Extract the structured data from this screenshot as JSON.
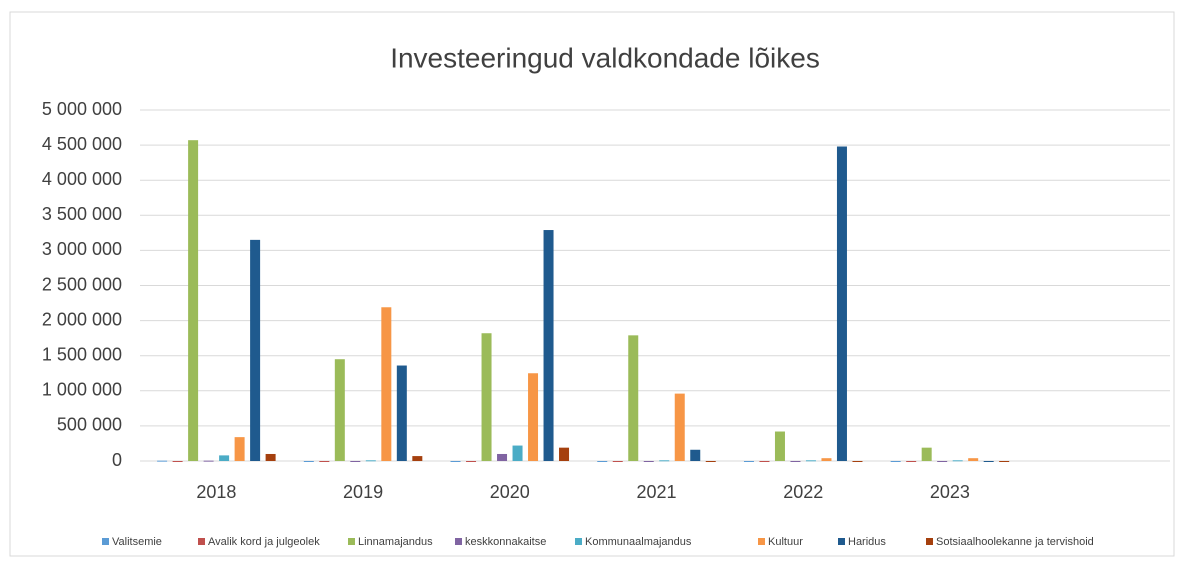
{
  "chart_data": {
    "type": "bar",
    "title": "Investeeringud valdkondade lõikes",
    "categories": [
      "2018",
      "2019",
      "2020",
      "2021",
      "2022",
      "2023",
      null
    ],
    "series": [
      {
        "name": "Valitsemie",
        "color": "#5b9bd5",
        "values": [
          5000,
          0,
          0,
          0,
          0,
          0,
          null
        ]
      },
      {
        "name": "Avalik kord ja julgeolek",
        "color": "#c0504d",
        "values": [
          0,
          0,
          0,
          0,
          0,
          0,
          null
        ]
      },
      {
        "name": "Linnamajandus",
        "color": "#9bbb59",
        "values": [
          4570000,
          1450000,
          1820000,
          1790000,
          420000,
          190000,
          null
        ]
      },
      {
        "name": "keskkonnakaitse",
        "color": "#8064a2",
        "values": [
          5000,
          0,
          100000,
          0,
          0,
          0,
          null
        ]
      },
      {
        "name": "Kommunaalmajandus",
        "color": "#4bacc6",
        "values": [
          80000,
          10000,
          220000,
          10000,
          10000,
          10000,
          null
        ]
      },
      {
        "name": "Kultuur",
        "color": "#f79646",
        "values": [
          340000,
          2190000,
          1250000,
          960000,
          40000,
          40000,
          null
        ]
      },
      {
        "name": "Haridus",
        "color": "#1f5a8e",
        "values": [
          3150000,
          1360000,
          3290000,
          160000,
          4480000,
          0,
          null
        ]
      },
      {
        "name": "Sotsiaalhoolekanne ja tervishoid",
        "color": "#a5400e",
        "values": [
          100000,
          70000,
          190000,
          0,
          0,
          0,
          null
        ]
      }
    ],
    "ylim": [
      0,
      5000000
    ],
    "yticks": [
      0,
      {
        "value": 500000,
        "label": "500 000"
      },
      {
        "value": 1000000,
        "label": "1 000 000"
      },
      {
        "value": 1500000,
        "label": "1 500 000"
      },
      {
        "value": 2000000,
        "label": "2 000 000"
      },
      {
        "value": 2500000,
        "label": "2 500 000"
      },
      {
        "value": 3000000,
        "label": "3 000 000"
      },
      {
        "value": 3500000,
        "label": "3 500 000"
      },
      {
        "value": 4000000,
        "label": "4 000 000"
      },
      {
        "value": 4500000,
        "label": "4 500 000"
      },
      {
        "value": 5000000,
        "label": "5 000 000"
      }
    ],
    "grid": true,
    "legend": "bottom"
  }
}
